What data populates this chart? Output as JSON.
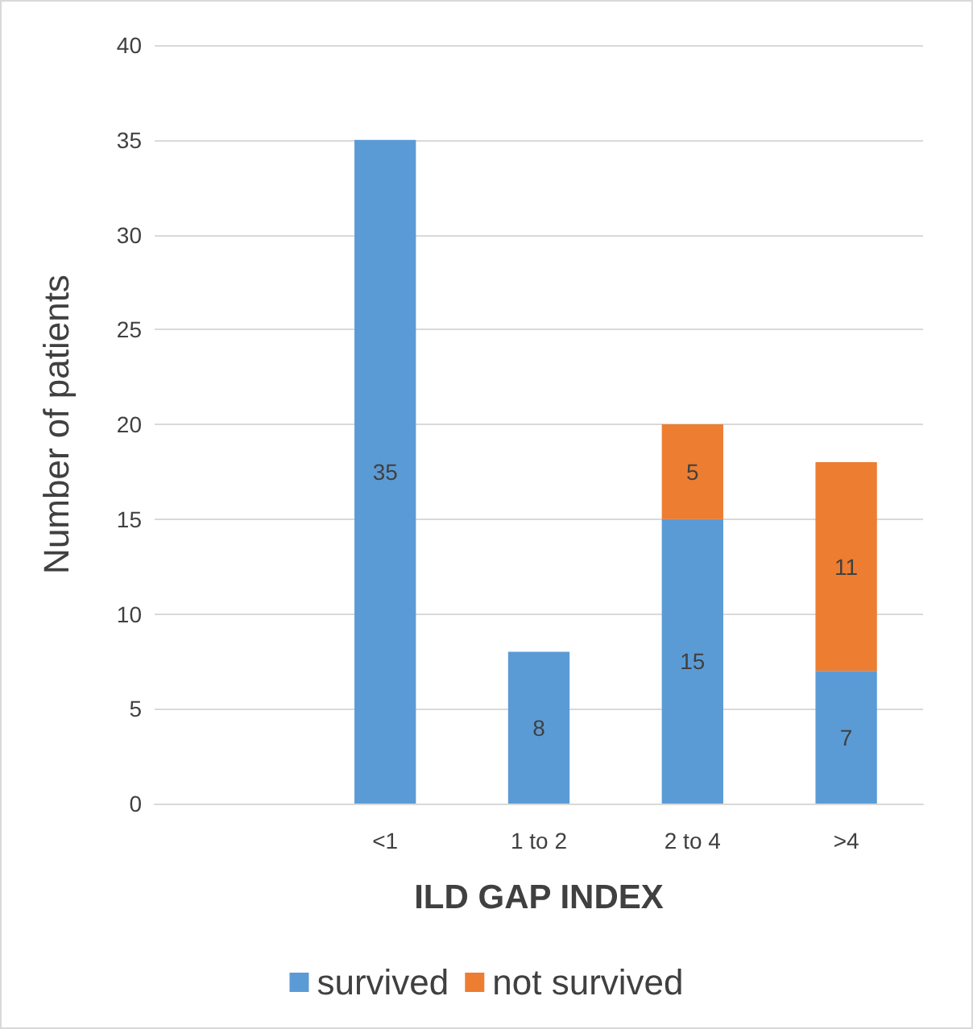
{
  "chart_data": {
    "type": "bar",
    "stacked": true,
    "xlabel": "ILD GAP INDEX",
    "ylabel": "Number of patients",
    "categories": [
      null,
      "<1",
      "1 to 2",
      "2 to 4",
      ">4"
    ],
    "series": [
      {
        "name": "survived",
        "color": "#5b9bd5",
        "values": [
          null,
          35,
          8,
          15,
          7
        ],
        "value_labels": [
          null,
          "35",
          "8",
          "15",
          "7"
        ]
      },
      {
        "name": "not survived",
        "color": "#ed7d31",
        "values": [
          null,
          null,
          null,
          5,
          11
        ],
        "value_labels": [
          null,
          null,
          null,
          "5",
          "11"
        ]
      }
    ],
    "ylim": [
      0,
      40
    ],
    "yticks": [
      0,
      5,
      10,
      15,
      20,
      25,
      30,
      35,
      40
    ],
    "grid": "y",
    "legend": "bottom"
  }
}
